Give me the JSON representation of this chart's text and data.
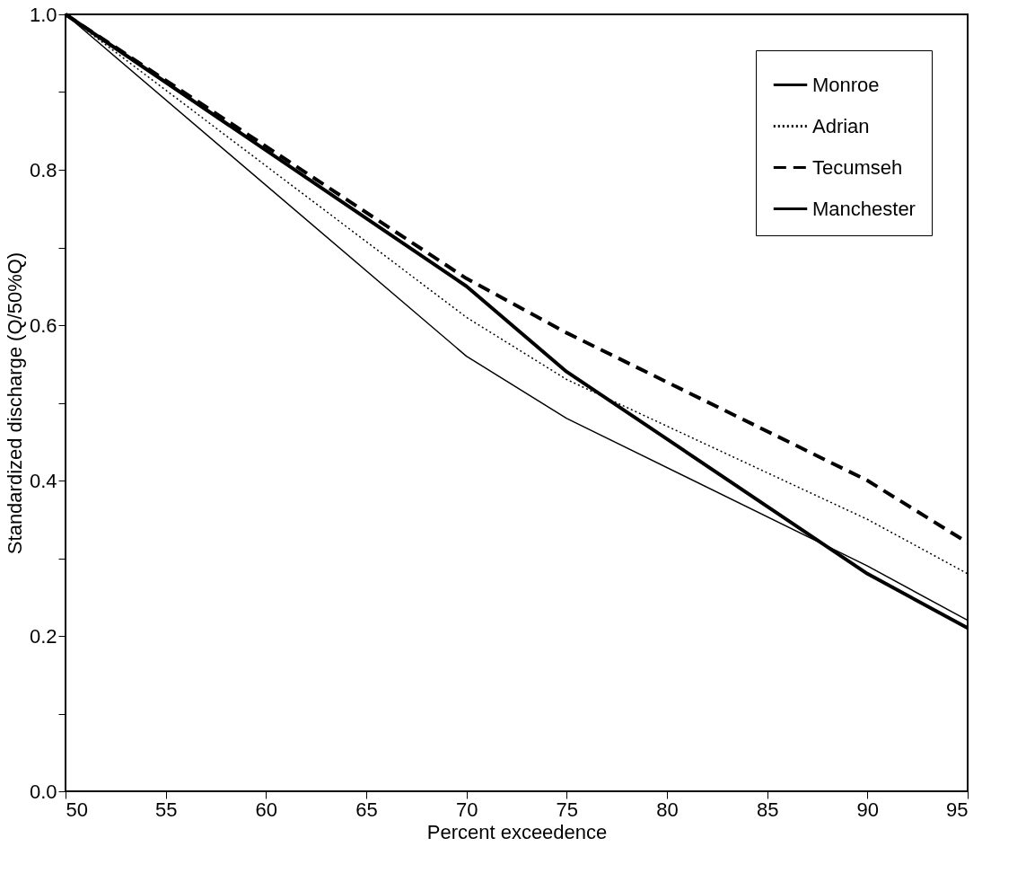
{
  "chart_data": {
    "type": "line",
    "xlabel": "Percent exceedence",
    "ylabel": "Standardized discharge (Q/50%Q)",
    "xlim": [
      50,
      95
    ],
    "xticks": [
      50,
      55,
      60,
      65,
      70,
      75,
      80,
      85,
      90,
      95
    ],
    "ylim": [
      0,
      1
    ],
    "yticks": [
      {
        "value": 0,
        "label": "0.0"
      },
      {
        "value": 0.1,
        "label": null
      },
      0.2,
      {
        "value": 0.3,
        "label": null
      },
      0.4,
      {
        "value": 0.5,
        "label": null
      },
      0.6,
      {
        "value": 0.7,
        "label": null
      },
      0.8,
      {
        "value": 0.9,
        "label": null
      },
      {
        "value": 1,
        "label": "1.0"
      }
    ],
    "x": [
      50,
      70,
      75,
      90,
      95
    ],
    "series": [
      {
        "name": "Monroe",
        "color": "#000000",
        "line_style": "solid",
        "values": [
          1.0,
          0.56,
          0.48,
          0.29,
          0.22
        ]
      },
      {
        "name": "Adrian",
        "color": "#000000",
        "line_style": "dotted",
        "values": [
          1.0,
          0.61,
          0.53,
          0.35,
          0.28
        ]
      },
      {
        "name": "Tecumseh",
        "color": "#000000",
        "line_style": "dashed",
        "values": [
          1.0,
          0.66,
          0.59,
          0.4,
          0.32
        ]
      },
      {
        "name": "Manchester",
        "color": "#000000",
        "line_style": "solid",
        "values": [
          1.0,
          0.65,
          0.54,
          0.28,
          0.21
        ]
      }
    ],
    "grid": false,
    "legend": "top right",
    "marker": "none"
  }
}
